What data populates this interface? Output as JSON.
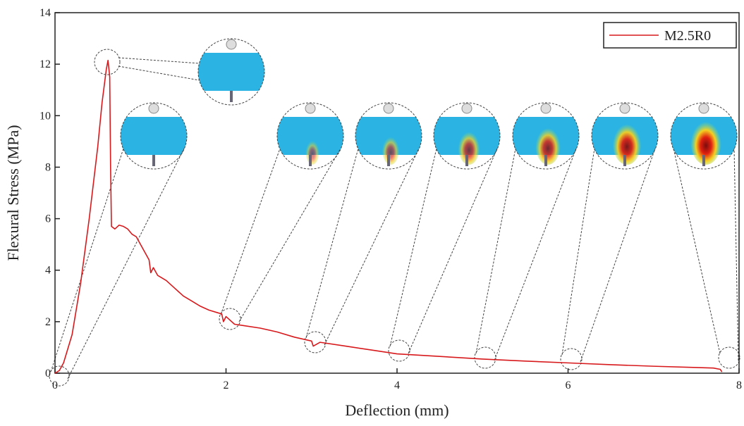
{
  "chart_data": {
    "type": "line",
    "x_label": "Deflection (mm)",
    "y_label": "Flexural Stress (MPa)",
    "x": [
      0,
      0.05,
      0.1,
      0.2,
      0.3,
      0.4,
      0.5,
      0.55,
      0.6,
      0.62,
      0.64,
      0.65,
      0.66,
      0.7,
      0.75,
      0.8,
      0.85,
      0.9,
      0.95,
      1.0,
      1.05,
      1.1,
      1.12,
      1.15,
      1.2,
      1.3,
      1.4,
      1.5,
      1.6,
      1.7,
      1.8,
      1.9,
      1.95,
      1.97,
      2.0,
      2.1,
      2.2,
      2.4,
      2.6,
      2.8,
      3.0,
      3.02,
      3.1,
      3.4,
      3.7,
      4.0,
      4.5,
      5.0,
      5.5,
      6.0,
      6.5,
      7.0,
      7.5,
      7.7,
      7.78,
      7.8
    ],
    "series": [
      {
        "name": "M2.5R0",
        "color": "#d7191c",
        "values": [
          0,
          0.1,
          0.4,
          1.5,
          3.5,
          6,
          8.8,
          10.5,
          11.8,
          12.15,
          11.5,
          8,
          5.7,
          5.6,
          5.75,
          5.7,
          5.6,
          5.4,
          5.3,
          5.0,
          4.7,
          4.4,
          3.9,
          4.1,
          3.8,
          3.6,
          3.3,
          3.0,
          2.8,
          2.6,
          2.45,
          2.35,
          2.3,
          2.0,
          2.2,
          1.9,
          1.85,
          1.75,
          1.6,
          1.4,
          1.25,
          1.05,
          1.2,
          1.05,
          0.9,
          0.75,
          0.65,
          0.55,
          0.47,
          0.4,
          0.33,
          0.27,
          0.22,
          0.2,
          0.15,
          0.05
        ]
      }
    ],
    "xlim": [
      0,
      8
    ],
    "xticks": [
      0,
      2,
      4,
      6,
      8
    ],
    "ylim": [
      0,
      14
    ],
    "yticks": [
      0,
      2,
      4,
      6,
      8,
      10,
      12,
      14
    ],
    "legend": "top-right"
  }
}
